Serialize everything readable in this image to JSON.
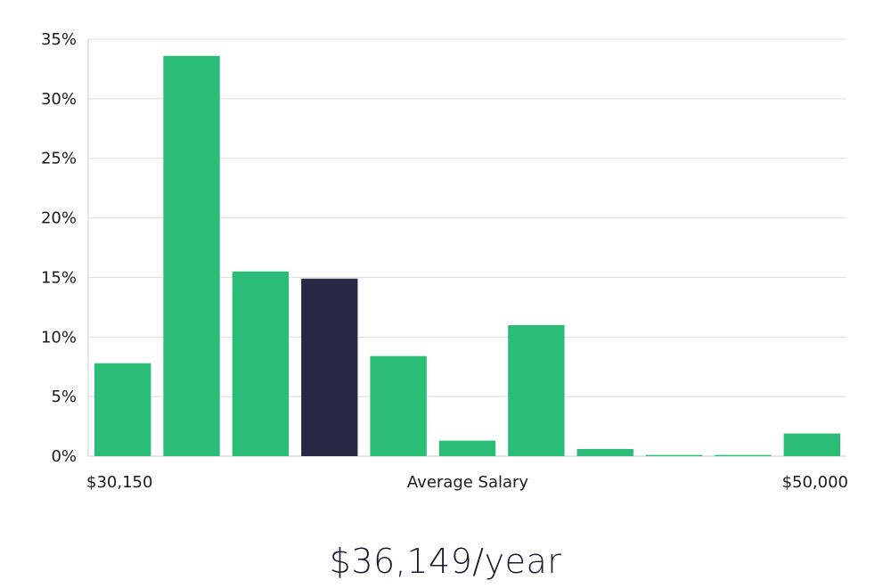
{
  "colors": {
    "bar": "#2bbd77",
    "highlight": "#2a2745",
    "grid": "#dedede",
    "axis": "#cfcfcf"
  },
  "chart_data": {
    "type": "bar",
    "title": "",
    "xlabel": "Average Salary",
    "ylabel": "",
    "x_range_labels": [
      "$30,150",
      "$50,000"
    ],
    "y_ticks": [
      "0%",
      "5%",
      "10%",
      "15%",
      "20%",
      "25%",
      "30%",
      "35%"
    ],
    "ylim": [
      0,
      35
    ],
    "values": [
      7.8,
      33.6,
      15.5,
      14.9,
      8.4,
      1.3,
      11.0,
      0.6,
      0.1,
      0.1,
      1.9
    ],
    "highlight_index": 3,
    "grid": true
  },
  "summary": {
    "salary": "$36,149/year"
  }
}
